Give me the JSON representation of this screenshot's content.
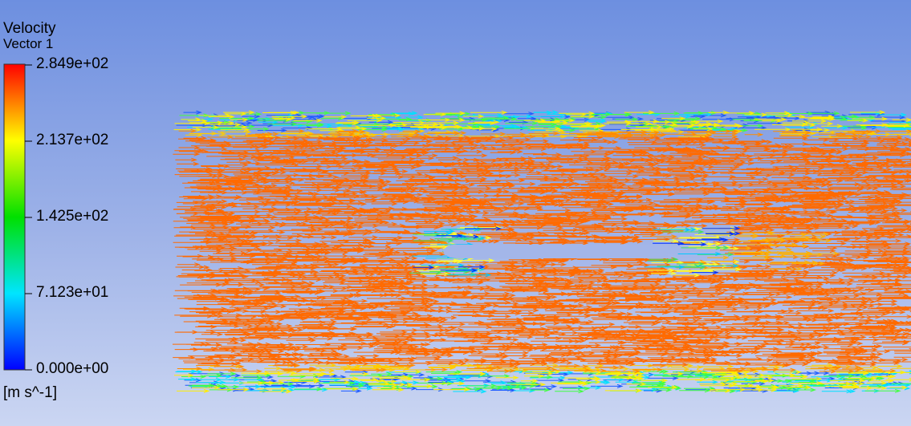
{
  "legend": {
    "title": [
      "Velocity",
      "Vector 1"
    ],
    "ticks": [
      "2.849e+02",
      "2.137e+02",
      "1.425e+02",
      "7.123e+01",
      "0.000e+00"
    ],
    "unit": "[m s^-1]"
  }
}
